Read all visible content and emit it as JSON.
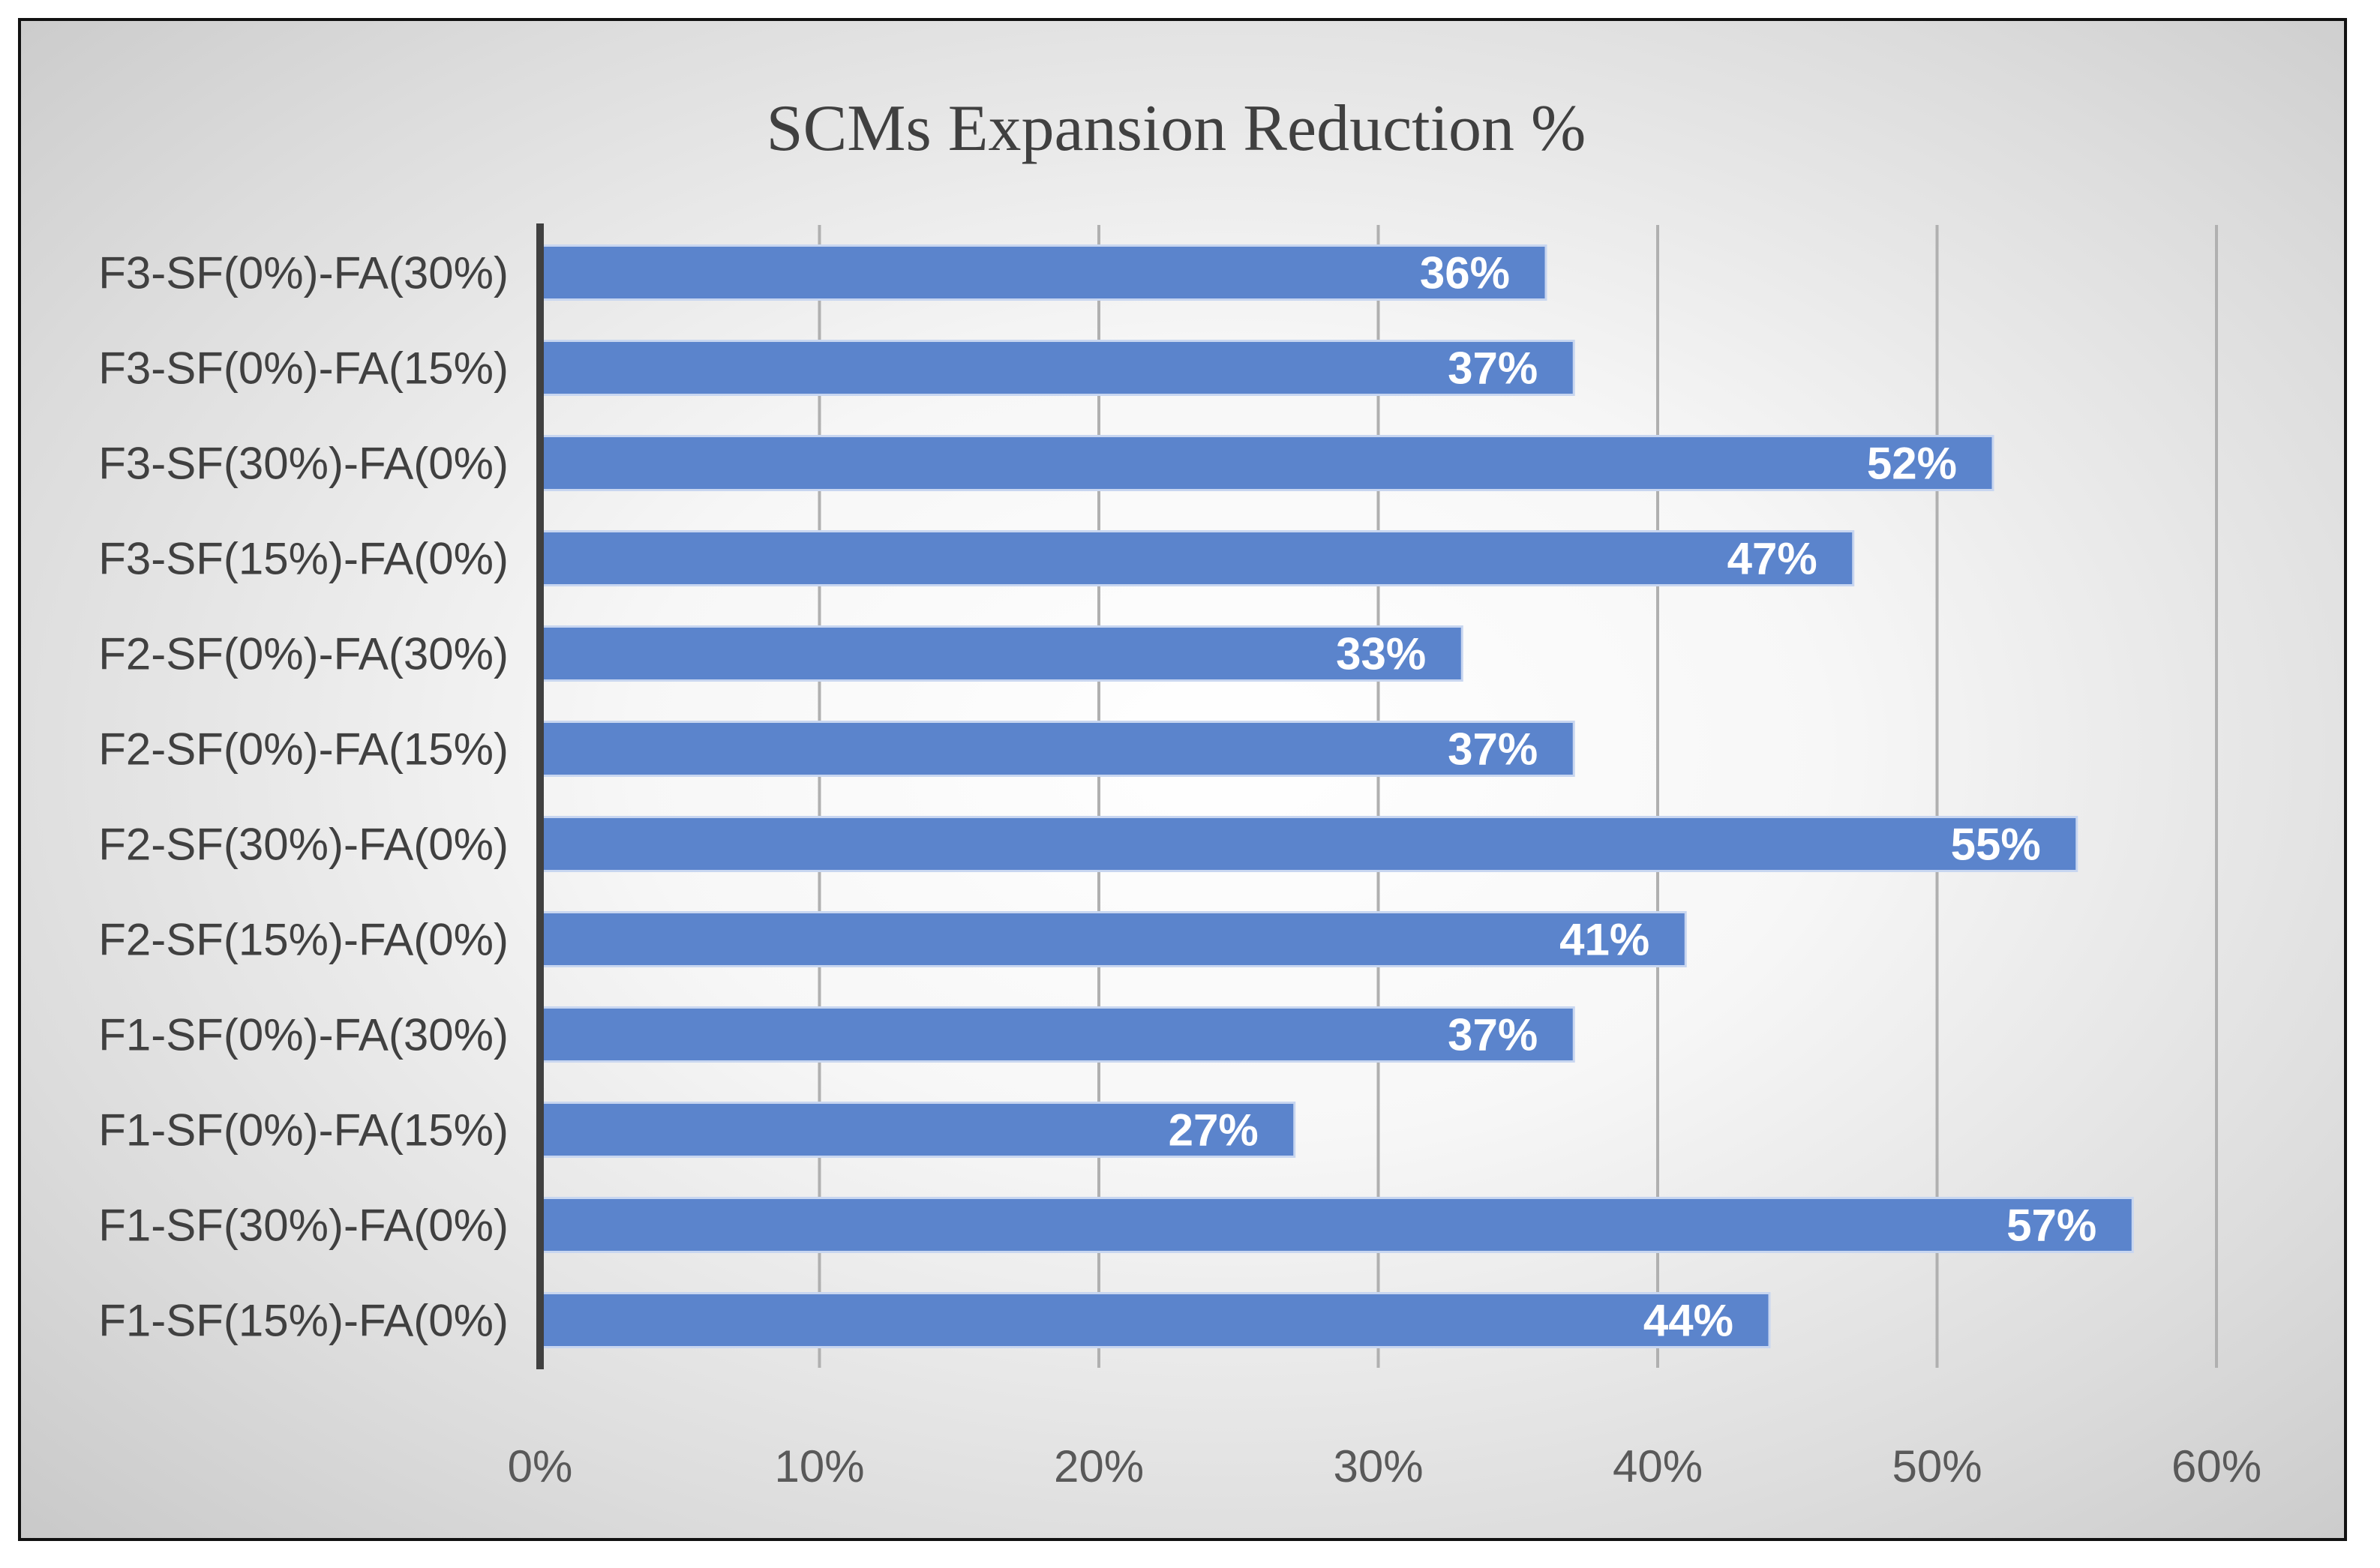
{
  "chart_data": {
    "type": "bar",
    "orientation": "horizontal",
    "title": "SCMs Expansion Reduction %",
    "xlabel": "",
    "ylabel": "",
    "xlim": [
      0,
      60
    ],
    "x_ticks": [
      "0%",
      "10%",
      "20%",
      "30%",
      "40%",
      "50%",
      "60%"
    ],
    "x_tick_values": [
      0,
      10,
      20,
      30,
      40,
      50,
      60
    ],
    "grid": true,
    "legend": "none",
    "bar_color": "#5b84cc",
    "categories": [
      "F1-SF(15%)-FA(0%)",
      "F1-SF(30%)-FA(0%)",
      "F1-SF(0%)-FA(15%)",
      "F1-SF(0%)-FA(30%)",
      "F2-SF(15%)-FA(0%)",
      "F2-SF(30%)-FA(0%)",
      "F2-SF(0%)-FA(15%)",
      "F2-SF(0%)-FA(30%)",
      "F3-SF(15%)-FA(0%)",
      "F3-SF(30%)-FA(0%)",
      "F3-SF(0%)-FA(15%)",
      "F3-SF(0%)-FA(30%)"
    ],
    "values": [
      44,
      57,
      27,
      37,
      41,
      55,
      37,
      33,
      47,
      52,
      37,
      36
    ],
    "value_labels": [
      "44%",
      "57%",
      "27%",
      "37%",
      "41%",
      "55%",
      "37%",
      "33%",
      "47%",
      "52%",
      "37%",
      "36%"
    ]
  }
}
